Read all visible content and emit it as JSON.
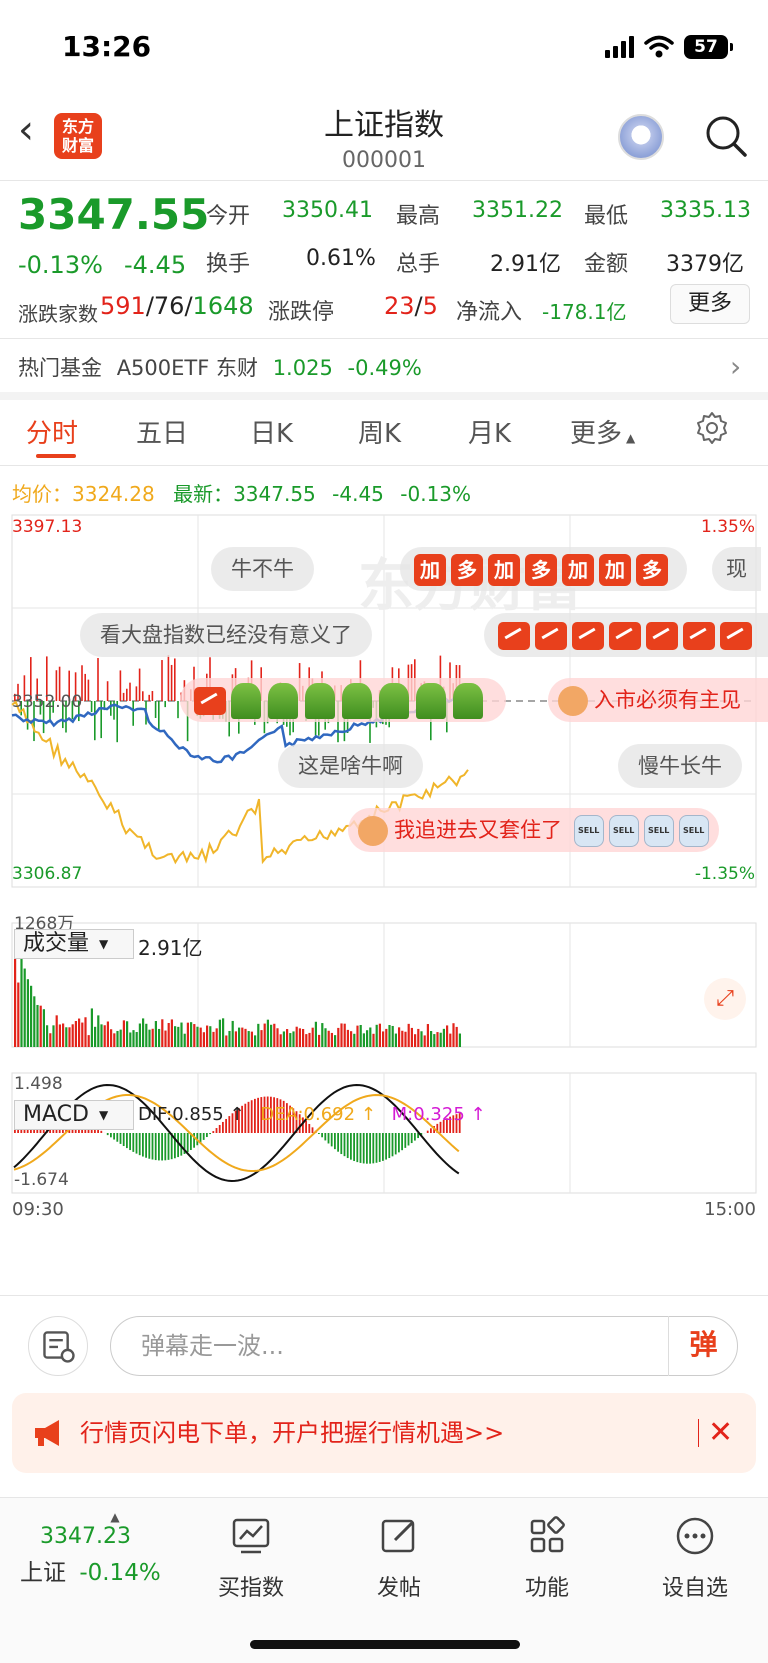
{
  "status": {
    "time": "13:26",
    "battery": "57"
  },
  "header": {
    "logo": "东方\n财富",
    "title": "上证指数",
    "code": "000001"
  },
  "quote": {
    "price": "3347.55",
    "change_pct": "-0.13%",
    "change_val": "-4.45",
    "fields": [
      {
        "label": "今开",
        "value": "3350.41",
        "color": "green"
      },
      {
        "label": "最高",
        "value": "3351.22",
        "color": "green"
      },
      {
        "label": "最低",
        "value": "3335.13",
        "color": "green"
      },
      {
        "label": "换手",
        "value": "0.61%",
        "color": "black"
      },
      {
        "label": "总手",
        "value": "2.91亿",
        "color": "black"
      },
      {
        "label": "金额",
        "value": "3379亿",
        "color": "black"
      }
    ],
    "advance_label": "涨跌家数",
    "advance": "591",
    "flat": "76",
    "decline": "1648",
    "limit_label": "涨跌停",
    "limit_up": "23",
    "limit_down": "5",
    "netflow_label": "净流入",
    "netflow": "-178.1亿",
    "more_label": "更多"
  },
  "fund": {
    "label": "热门基金",
    "name": "A500ETF 东财",
    "price": "1.025",
    "pct": "-0.49%"
  },
  "tabs": [
    "分时",
    "五日",
    "日K",
    "周K",
    "月K",
    "更多"
  ],
  "intraday": {
    "avg_label": "均价：",
    "avg_value": "3324.28",
    "latest_label": "最新：",
    "latest_value": "3347.55",
    "latest_chg": "-4.45",
    "latest_pct": "-0.13%",
    "y_top": "3397.13",
    "y_bottom": "3306.87",
    "y_mid": "3352.00",
    "pct_top": "1.35%",
    "pct_bottom": "-1.35%",
    "watermark": "东方财富"
  },
  "volume": {
    "selector": "成交量",
    "total": "2.91亿",
    "max_label": "1268万"
  },
  "macd": {
    "selector": "MACD",
    "dif": "DIF:0.855 ↑",
    "dea": "DEA:0.692 ↑",
    "m": "M:0.325 ↑",
    "top": "1.498",
    "bottom": "-1.674"
  },
  "time_axis": {
    "start": "09:30",
    "end": "15:00"
  },
  "danmu": {
    "d1": "牛不牛",
    "d2_badges": [
      "加",
      "多",
      "加",
      "多",
      "加",
      "加",
      "多"
    ],
    "d3": "现",
    "d4": "看大盘指数已经没有意义了",
    "d5": "入市必须有主见",
    "d6": "这是啥牛啊",
    "d7": "慢牛长牛",
    "d8": "我追进去又套住了",
    "sell": "SELL"
  },
  "input": {
    "placeholder": "弹幕走一波...",
    "send": "弹"
  },
  "promo": {
    "text": "行情页闪电下单，开户把握行情机遇>>",
    "close": "✕"
  },
  "bottom": {
    "index_value": "3347.23",
    "index_name": "上证",
    "index_pct": "-0.14%",
    "items": [
      "买指数",
      "发帖",
      "功能",
      "设自选"
    ]
  }
}
